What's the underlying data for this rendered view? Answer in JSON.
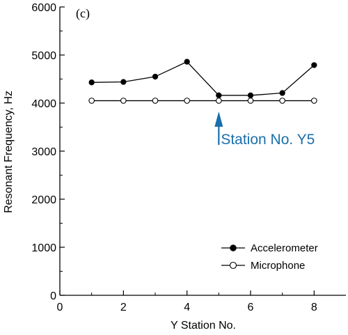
{
  "chart_data": {
    "type": "line",
    "panel_label": "(c)",
    "title": "",
    "xlabel": "Y Station No.",
    "ylabel": "Resonant Frequency, Hz",
    "xlim": [
      0,
      9
    ],
    "ylim": [
      0,
      6000
    ],
    "xticks": [
      0,
      2,
      4,
      6,
      8
    ],
    "yticks": [
      0,
      1000,
      2000,
      3000,
      4000,
      5000,
      6000
    ],
    "x": [
      1,
      2,
      3,
      4,
      5,
      6,
      7,
      8
    ],
    "series": [
      {
        "name": "Accelerometer",
        "marker": "filled-circle",
        "values": [
          4430,
          4440,
          4550,
          4860,
          4160,
          4160,
          4210,
          4790
        ]
      },
      {
        "name": "Microphone",
        "marker": "open-circle",
        "values": [
          4050,
          4050,
          4050,
          4050,
          4050,
          4050,
          4050,
          4050
        ]
      }
    ],
    "annotation": {
      "text": "Station No. Y5",
      "x": 5,
      "color": "#1a6fab"
    },
    "legend_position": "bottom-right",
    "grid": false
  }
}
